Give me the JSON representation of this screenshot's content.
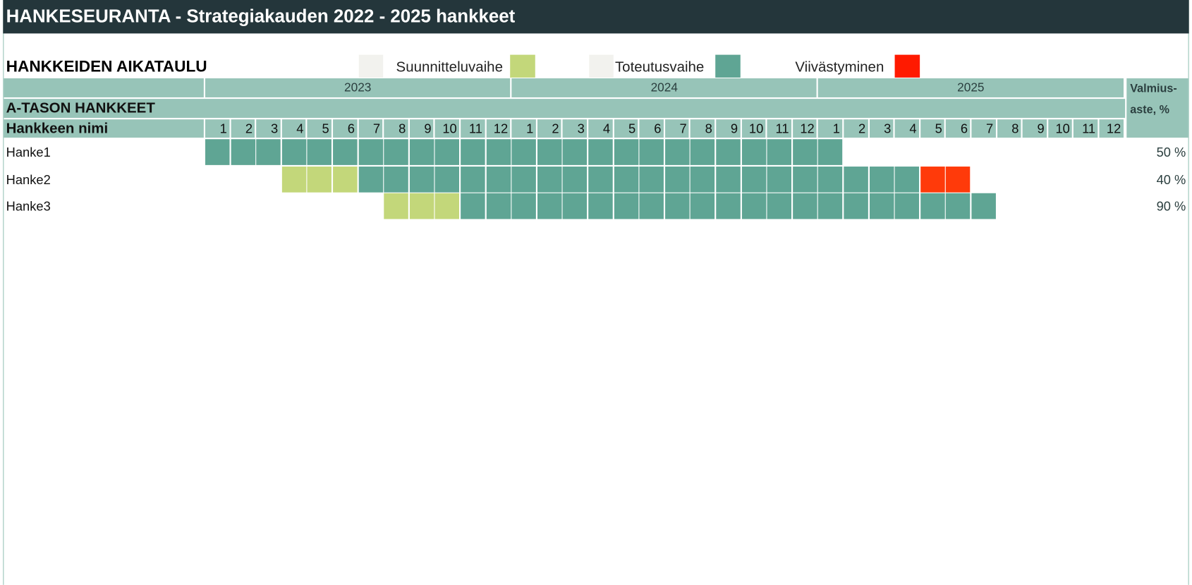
{
  "header": {
    "title": "HANKESEURANTA - Strategiakauden 2022 - 2025 hankkeet"
  },
  "schedule": {
    "heading": "HANKKEIDEN AIKATAULU",
    "legend": [
      {
        "label": "Suunnitteluvaihe",
        "color": "#c3d77a"
      },
      {
        "label": "Toteutusvaihe",
        "color": "#5fa594"
      },
      {
        "label": "Viivästyminen",
        "color": "#ff1a00"
      }
    ],
    "years": [
      {
        "label": "2023",
        "months": [
          1,
          2,
          3,
          4,
          5,
          6,
          7,
          8,
          9,
          10,
          11,
          12
        ]
      },
      {
        "label": "2024",
        "months": [
          1,
          2,
          3,
          4,
          5,
          6,
          7,
          8,
          9,
          10,
          11,
          12
        ]
      },
      {
        "label": "2025",
        "months": [
          1,
          2,
          3,
          4,
          5,
          6,
          7,
          8,
          9,
          10,
          11,
          12
        ]
      }
    ],
    "group": "A-TASON HANKKEET",
    "name_header": "Hankkeen nimi",
    "completion_header": [
      "Valmius-",
      "aste, %"
    ],
    "rows": [
      {
        "name": "Hanke1",
        "completion": "50 %",
        "cells": [
          "#5fa594",
          "#5fa594",
          "#5fa594",
          "#5fa594",
          "#5fa594",
          "#5fa594",
          "#5fa594",
          "#5fa594",
          "#5fa594",
          "#5fa594",
          "#5fa594",
          "#5fa594",
          "#5fa594",
          "#5fa594",
          "#5fa594",
          "#5fa594",
          "#5fa594",
          "#5fa594",
          "#5fa594",
          "#5fa594",
          "#5fa594",
          "#5fa594",
          "#5fa594",
          "#5fa594",
          "#5fa594",
          null,
          null,
          null,
          null,
          null,
          null,
          null,
          null,
          null,
          null,
          null
        ]
      },
      {
        "name": "Hanke2",
        "completion": "40 %",
        "cells": [
          null,
          null,
          null,
          "#c3d77a",
          "#c3d77a",
          "#c3d77a",
          "#5fa594",
          "#5fa594",
          "#5fa594",
          "#5fa594",
          "#5fa594",
          "#5fa594",
          "#5fa594",
          "#5fa594",
          "#5fa594",
          "#5fa594",
          "#5fa594",
          "#5fa594",
          "#5fa594",
          "#5fa594",
          "#5fa594",
          "#5fa594",
          "#5fa594",
          "#5fa594",
          "#5fa594",
          "#5fa594",
          "#5fa594",
          "#5fa594",
          "#ff3a0a",
          "#ff3a0a",
          null,
          null,
          null,
          null,
          null,
          null
        ]
      },
      {
        "name": "Hanke3",
        "completion": "90 %",
        "cells": [
          null,
          null,
          null,
          null,
          null,
          null,
          null,
          "#c3d77a",
          "#c3d77a",
          "#c3d77a",
          "#5fa594",
          "#5fa594",
          "#5fa594",
          "#5fa594",
          "#5fa594",
          "#5fa594",
          "#5fa594",
          "#5fa594",
          "#5fa594",
          "#5fa594",
          "#5fa594",
          "#5fa594",
          "#5fa594",
          "#5fa594",
          "#5fa594",
          "#5fa594",
          "#5fa594",
          "#5fa594",
          "#5fa594",
          "#5fa594",
          "#5fa594",
          null,
          null,
          null,
          null,
          null
        ]
      }
    ]
  }
}
